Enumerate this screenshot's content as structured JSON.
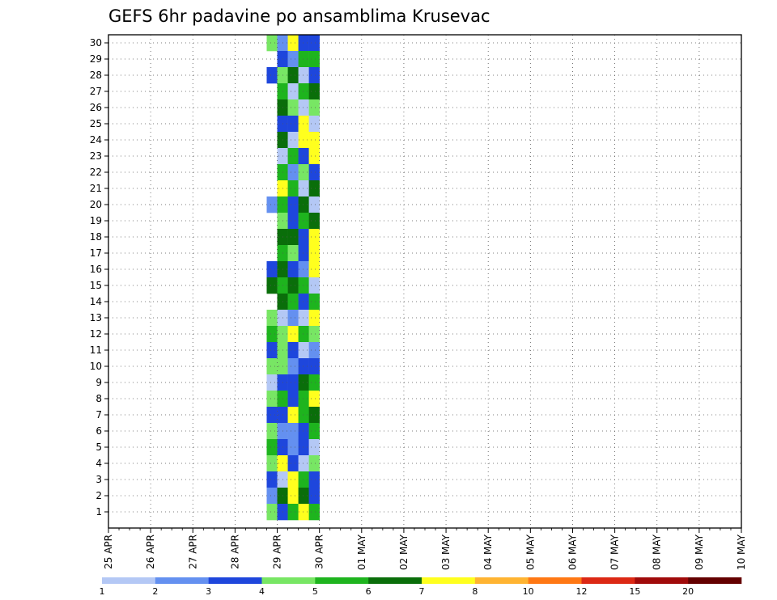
{
  "chart_data": {
    "type": "heatmap",
    "title": "GEFS 6hr padavine po ansamblima Krusevac",
    "x_ticks": [
      "25 APR",
      "26 APR",
      "27 APR",
      "28 APR",
      "29 APR",
      "30 APR",
      "01 MAY",
      "02 MAY",
      "03 MAY",
      "04 MAY",
      "05 MAY",
      "06 MAY",
      "07 MAY",
      "08 MAY",
      "09 MAY",
      "10 MAY"
    ],
    "y_ticks": [
      "1",
      "2",
      "3",
      "4",
      "5",
      "6",
      "7",
      "8",
      "9",
      "10",
      "11",
      "12",
      "13",
      "14",
      "15",
      "16",
      "17",
      "18",
      "19",
      "20",
      "21",
      "22",
      "23",
      "24",
      "25",
      "26",
      "27",
      "28",
      "29",
      "30"
    ],
    "x_range": [
      "25 APR 00Z",
      "10 MAY 00Z"
    ],
    "steps_per_day": 4,
    "y_range": [
      0,
      30
    ],
    "grid": true,
    "legend": {
      "placement": "bottom",
      "labels": [
        "1",
        "2",
        "3",
        "4",
        "5",
        "6",
        "7",
        "8",
        "10",
        "12",
        "15",
        "20"
      ],
      "colors": [
        "#b4c8f5",
        "#6490f0",
        "#1e46dc",
        "#78e664",
        "#1eb41e",
        "#0a6e0a",
        "#ffff1e",
        "#ffb432",
        "#ff7814",
        "#dc2814",
        "#a00a0a",
        "#640000"
      ]
    },
    "cells": [
      [
        0,
        30,
        3,
        2
      ],
      [
        0,
        28,
        2,
        1
      ],
      [
        0,
        20,
        1,
        1
      ],
      [
        0,
        16,
        2,
        1
      ],
      [
        0,
        15,
        5,
        1
      ],
      [
        0,
        13,
        3,
        1
      ],
      [
        0,
        12,
        4,
        3
      ],
      [
        0,
        11,
        2,
        0
      ],
      [
        0,
        10,
        3,
        1
      ],
      [
        0,
        9,
        0,
        1
      ],
      [
        0,
        8,
        3,
        0
      ],
      [
        0,
        7,
        2,
        1
      ],
      [
        0,
        6,
        3,
        0
      ],
      [
        0,
        5,
        4,
        1
      ],
      [
        0,
        4,
        3,
        3
      ],
      [
        0,
        3,
        2,
        0
      ],
      [
        0,
        2,
        1,
        1
      ],
      [
        0,
        1,
        3,
        1
      ],
      [
        1,
        30,
        1,
        0
      ],
      [
        1,
        29,
        2,
        1
      ],
      [
        1,
        28,
        3,
        0
      ],
      [
        1,
        27,
        4,
        0
      ],
      [
        1,
        26,
        5,
        0
      ],
      [
        1,
        25,
        2,
        0
      ],
      [
        1,
        24,
        5,
        1
      ],
      [
        1,
        23,
        0,
        0
      ],
      [
        1,
        22,
        4,
        2
      ],
      [
        1,
        21,
        6,
        0
      ],
      [
        1,
        20,
        4,
        1
      ],
      [
        1,
        19,
        3,
        2
      ],
      [
        1,
        18,
        5,
        0
      ],
      [
        1,
        17,
        4,
        2
      ],
      [
        1,
        16,
        5,
        1
      ],
      [
        1,
        15,
        4,
        1
      ],
      [
        1,
        14,
        5,
        2
      ],
      [
        1,
        13,
        0,
        0
      ],
      [
        1,
        12,
        3,
        1
      ],
      [
        1,
        11,
        3,
        1
      ],
      [
        1,
        10,
        3,
        1
      ],
      [
        1,
        9,
        2,
        1
      ],
      [
        1,
        8,
        4,
        1
      ],
      [
        1,
        7,
        2,
        1
      ],
      [
        1,
        6,
        1,
        1
      ],
      [
        1,
        5,
        2,
        0
      ],
      [
        1,
        4,
        6,
        0
      ],
      [
        1,
        3,
        0,
        1
      ],
      [
        1,
        2,
        5,
        0
      ],
      [
        1,
        1,
        2,
        1
      ],
      [
        2,
        30,
        6,
        1
      ],
      [
        2,
        29,
        1,
        0
      ],
      [
        2,
        28,
        5,
        0
      ],
      [
        2,
        27,
        0,
        1
      ],
      [
        2,
        26,
        3,
        2
      ],
      [
        2,
        25,
        2,
        1
      ],
      [
        2,
        24,
        0,
        0
      ],
      [
        2,
        23,
        4,
        1
      ],
      [
        2,
        22,
        1,
        1
      ],
      [
        2,
        21,
        4,
        1
      ],
      [
        2,
        20,
        2,
        1
      ],
      [
        2,
        19,
        2,
        1
      ],
      [
        2,
        18,
        5,
        1
      ],
      [
        2,
        17,
        3,
        1
      ],
      [
        2,
        16,
        2,
        0
      ],
      [
        2,
        15,
        5,
        1
      ],
      [
        2,
        14,
        4,
        1
      ],
      [
        2,
        13,
        1,
        0
      ],
      [
        2,
        12,
        6,
        0
      ],
      [
        2,
        11,
        2,
        1
      ],
      [
        2,
        10,
        1,
        0
      ],
      [
        2,
        9,
        2,
        1
      ],
      [
        2,
        8,
        2,
        0
      ],
      [
        2,
        7,
        6,
        0
      ],
      [
        2,
        6,
        1,
        1
      ],
      [
        2,
        5,
        1,
        1
      ],
      [
        2,
        4,
        2,
        1
      ],
      [
        2,
        3,
        6,
        0
      ],
      [
        2,
        2,
        6,
        1
      ],
      [
        2,
        1,
        4,
        3
      ],
      [
        3,
        30,
        2,
        0
      ],
      [
        3,
        29,
        4,
        1
      ],
      [
        3,
        28,
        0,
        0
      ],
      [
        3,
        27,
        4,
        0
      ],
      [
        3,
        26,
        0,
        0
      ],
      [
        3,
        25,
        6,
        1
      ],
      [
        3,
        24,
        6,
        0
      ],
      [
        3,
        23,
        2,
        1
      ],
      [
        3,
        22,
        3,
        0
      ],
      [
        3,
        21,
        0,
        1
      ],
      [
        3,
        20,
        5,
        1
      ],
      [
        3,
        19,
        4,
        2
      ],
      [
        3,
        18,
        2,
        1
      ],
      [
        3,
        17,
        2,
        1
      ],
      [
        3,
        16,
        1,
        0
      ],
      [
        3,
        15,
        4,
        1
      ],
      [
        3,
        14,
        2,
        1
      ],
      [
        3,
        13,
        0,
        1
      ],
      [
        3,
        12,
        4,
        1
      ],
      [
        3,
        11,
        0,
        1
      ],
      [
        3,
        10,
        2,
        0
      ],
      [
        3,
        9,
        5,
        0
      ],
      [
        3,
        8,
        4,
        1
      ],
      [
        3,
        7,
        4,
        1
      ],
      [
        3,
        6,
        2,
        0
      ],
      [
        3,
        5,
        2,
        2
      ],
      [
        3,
        4,
        0,
        1
      ],
      [
        3,
        3,
        4,
        1
      ],
      [
        3,
        2,
        5,
        1
      ],
      [
        3,
        1,
        6,
        1
      ],
      [
        4,
        30,
        2,
        1
      ],
      [
        4,
        29,
        4,
        1
      ],
      [
        4,
        28,
        2,
        1
      ],
      [
        4,
        27,
        5,
        1
      ],
      [
        4,
        26,
        3,
        1
      ],
      [
        4,
        25,
        0,
        1
      ],
      [
        4,
        24,
        6,
        1
      ],
      [
        4,
        23,
        6,
        1
      ],
      [
        4,
        22,
        2,
        1
      ],
      [
        4,
        21,
        5,
        1
      ],
      [
        4,
        20,
        0,
        1
      ],
      [
        4,
        19,
        5,
        1
      ],
      [
        4,
        18,
        6,
        1
      ],
      [
        4,
        17,
        6,
        1
      ],
      [
        4,
        16,
        6,
        1
      ],
      [
        4,
        15,
        0,
        1
      ],
      [
        4,
        14,
        4,
        1
      ],
      [
        4,
        13,
        6,
        1
      ],
      [
        4,
        12,
        3,
        1
      ],
      [
        4,
        11,
        1,
        1
      ],
      [
        4,
        10,
        2,
        1
      ],
      [
        4,
        9,
        4,
        1
      ],
      [
        4,
        8,
        6,
        1
      ],
      [
        4,
        7,
        5,
        1
      ],
      [
        4,
        6,
        4,
        1
      ],
      [
        4,
        5,
        0,
        1
      ],
      [
        4,
        4,
        3,
        1
      ],
      [
        4,
        3,
        2,
        1
      ],
      [
        4,
        2,
        2,
        1
      ],
      [
        4,
        1,
        4,
        1
      ]
    ]
  }
}
